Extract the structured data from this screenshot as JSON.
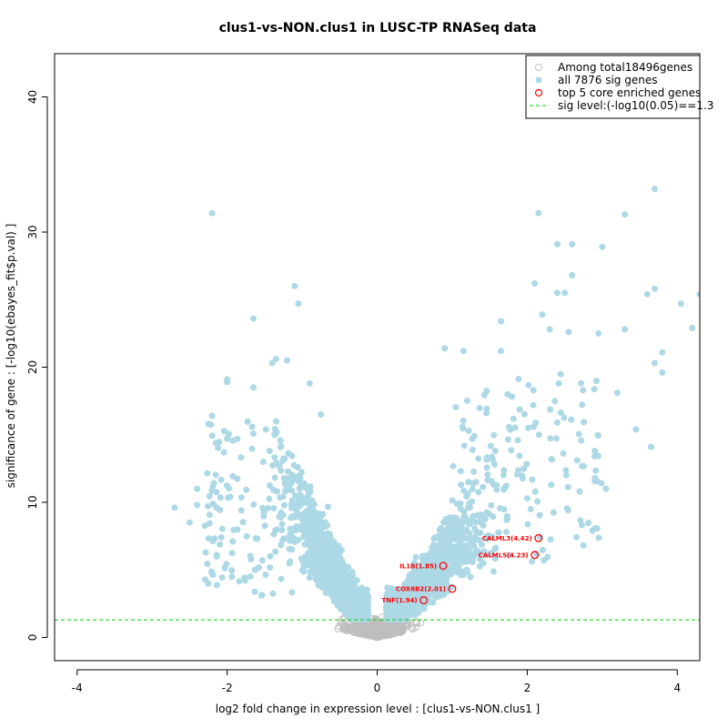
{
  "chart_data": {
    "type": "scatter",
    "title": "clus1-vs-NON.clus1 in LUSC-TP RNASeq data",
    "xlabel": "log2 fold change in expression level : [clus1-vs-NON.clus1 ]",
    "ylabel": "significance of gene : [-log10(ebayes_fit$p.val) ]",
    "xlim": [
      -4.3,
      4.3
    ],
    "ylim": [
      -1.72,
      43.2
    ],
    "xticks": [
      -4,
      -2,
      0,
      2,
      4
    ],
    "yticks": [
      0,
      10,
      20,
      30,
      40
    ],
    "grid": false,
    "legend_position": "top-right",
    "sig_threshold": 1.3,
    "legend": {
      "total": "Among total18496genes",
      "sig": "all 7876 sig genes",
      "top": "top 5 core enriched genes",
      "line": "sig level:(-log10(0.05)==1.3"
    },
    "colors": {
      "nonsig": "#bebebe",
      "sig": "#add8e6",
      "highlight": "#ff0000",
      "threshold": "#00cd00"
    },
    "highlighted_genes": [
      {
        "label": "CALML3(4.42)",
        "x": 2.15,
        "y": 7.35
      },
      {
        "label": "CALML5(4.23)",
        "x": 2.1,
        "y": 6.1
      },
      {
        "label": "IL1B(1.85)",
        "x": 0.88,
        "y": 5.3
      },
      {
        "label": "COX6B2(2.01)",
        "x": 1.0,
        "y": 3.6
      },
      {
        "label": "TNF(1.94)",
        "x": 0.62,
        "y": 2.75
      }
    ],
    "notable_points": [
      {
        "x": -2.7,
        "y": 9.6
      },
      {
        "x": -2.5,
        "y": 8.5
      },
      {
        "x": -2.4,
        "y": 11.0
      },
      {
        "x": -2.4,
        "y": 9.8
      },
      {
        "x": -2.2,
        "y": 31.4
      },
      {
        "x": -2.25,
        "y": 15.8
      },
      {
        "x": -2.2,
        "y": 16.4
      },
      {
        "x": -2.15,
        "y": 14.4
      },
      {
        "x": -2.0,
        "y": 19.1
      },
      {
        "x": -2.0,
        "y": 18.9
      },
      {
        "x": -1.65,
        "y": 23.6
      },
      {
        "x": -1.65,
        "y": 18.5
      },
      {
        "x": -1.4,
        "y": 20.3
      },
      {
        "x": -1.35,
        "y": 20.6
      },
      {
        "x": -1.2,
        "y": 20.5
      },
      {
        "x": -1.1,
        "y": 26.0
      },
      {
        "x": -1.05,
        "y": 24.7
      },
      {
        "x": -0.9,
        "y": 18.8
      },
      {
        "x": -0.75,
        "y": 16.5
      },
      {
        "x": 0.9,
        "y": 21.4
      },
      {
        "x": 1.15,
        "y": 21.2
      },
      {
        "x": 1.65,
        "y": 23.4
      },
      {
        "x": 1.65,
        "y": 21.2
      },
      {
        "x": 2.1,
        "y": 26.2
      },
      {
        "x": 2.15,
        "y": 31.4
      },
      {
        "x": 2.2,
        "y": 23.9
      },
      {
        "x": 2.3,
        "y": 22.8
      },
      {
        "x": 2.4,
        "y": 29.1
      },
      {
        "x": 2.4,
        "y": 25.5
      },
      {
        "x": 2.5,
        "y": 25.5
      },
      {
        "x": 2.55,
        "y": 22.6
      },
      {
        "x": 2.6,
        "y": 29.1
      },
      {
        "x": 2.6,
        "y": 26.8
      },
      {
        "x": 2.95,
        "y": 22.5
      },
      {
        "x": 3.0,
        "y": 28.9
      },
      {
        "x": 3.3,
        "y": 31.3
      },
      {
        "x": 3.3,
        "y": 22.8
      },
      {
        "x": 3.6,
        "y": 25.4
      },
      {
        "x": 3.7,
        "y": 25.8
      },
      {
        "x": 3.7,
        "y": 33.2
      },
      {
        "x": 3.7,
        "y": 20.3
      },
      {
        "x": 3.8,
        "y": 21.1
      },
      {
        "x": 3.8,
        "y": 19.6
      },
      {
        "x": 4.05,
        "y": 24.7
      },
      {
        "x": 4.2,
        "y": 22.9
      },
      {
        "x": 4.3,
        "y": 25.4
      },
      {
        "x": 3.65,
        "y": 14.1
      },
      {
        "x": 3.45,
        "y": 15.4
      },
      {
        "x": 3.2,
        "y": 18.1
      },
      {
        "x": 3.05,
        "y": 11.0
      },
      {
        "x": 2.9,
        "y": 13.8
      },
      {
        "x": 2.7,
        "y": 10.8
      },
      {
        "x": 2.4,
        "y": 15.9
      }
    ]
  }
}
